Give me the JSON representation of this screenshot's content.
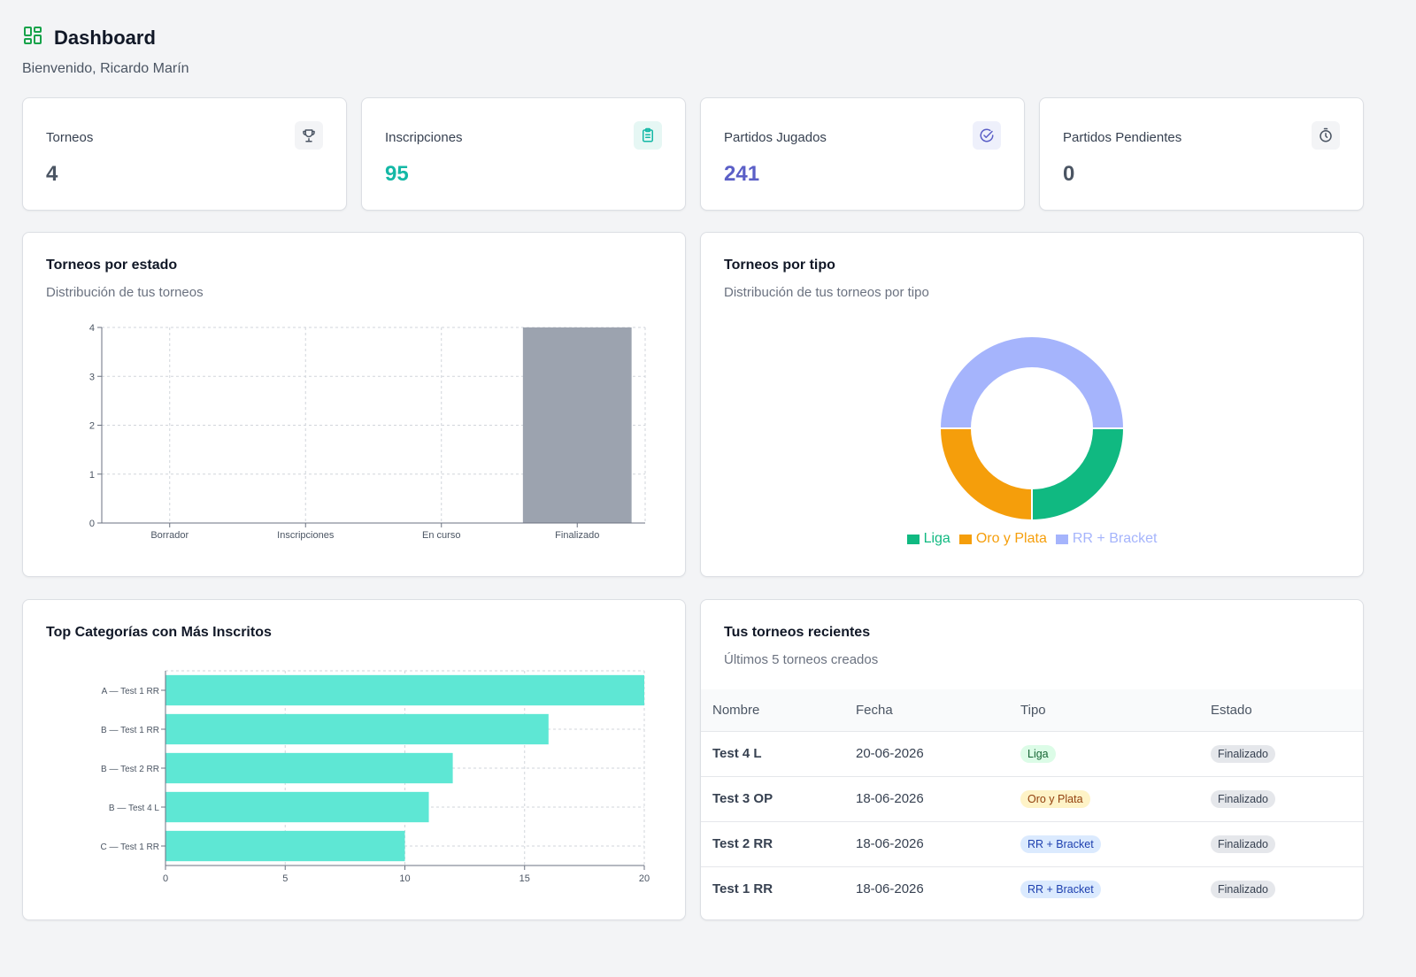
{
  "header": {
    "title": "Dashboard",
    "subtitle": "Bienvenido, Ricardo Marín",
    "icon": "dashboard-grid-icon"
  },
  "stats": [
    {
      "label": "Torneos",
      "value": "4",
      "icon": "trophy-icon",
      "color": "#4b5563",
      "icon_bg": "#f3f4f6"
    },
    {
      "label": "Inscripciones",
      "value": "95",
      "icon": "clipboard-icon",
      "color": "#14b8a6",
      "icon_bg": "#e6f7f4"
    },
    {
      "label": "Partidos Jugados",
      "value": "241",
      "icon": "check-circle-icon",
      "color": "#5b5fc7",
      "icon_bg": "#eef0fb"
    },
    {
      "label": "Partidos Pendientes",
      "value": "0",
      "icon": "timer-icon",
      "color": "#4b5563",
      "icon_bg": "#f3f4f6"
    }
  ],
  "estado_chart": {
    "title": "Torneos por estado",
    "subtitle": "Distribución de tus torneos"
  },
  "tipo_chart": {
    "title": "Torneos por tipo",
    "subtitle": "Distribución de tus torneos por tipo",
    "legend": [
      {
        "label": "Liga",
        "color": "#10b981"
      },
      {
        "label": "Oro y Plata",
        "color": "#f59e0b"
      },
      {
        "label": "RR + Bracket",
        "color": "#a5b4fc"
      }
    ]
  },
  "top_chart": {
    "title": "Top Categorías con Más Inscritos"
  },
  "recent": {
    "title": "Tus torneos recientes",
    "subtitle": "Últimos 5 torneos creados",
    "columns": [
      "Nombre",
      "Fecha",
      "Tipo",
      "Estado"
    ],
    "rows": [
      {
        "nombre": "Test 4 L",
        "fecha": "20-06-2026",
        "tipo": "Liga",
        "estado": "Finalizado"
      },
      {
        "nombre": "Test 3 OP",
        "fecha": "18-06-2026",
        "tipo": "Oro y Plata",
        "estado": "Finalizado"
      },
      {
        "nombre": "Test 2 RR",
        "fecha": "18-06-2026",
        "tipo": "RR + Bracket",
        "estado": "Finalizado"
      },
      {
        "nombre": "Test 1 RR",
        "fecha": "18-06-2026",
        "tipo": "RR + Bracket",
        "estado": "Finalizado"
      }
    ]
  },
  "chart_data": [
    {
      "type": "bar",
      "title": "Torneos por estado",
      "categories": [
        "Borrador",
        "Inscripciones",
        "En curso",
        "Finalizado"
      ],
      "values": [
        0,
        0,
        0,
        4
      ],
      "ylim": [
        0,
        4
      ],
      "yticks": [
        0,
        1,
        2,
        3,
        4
      ],
      "grid": true,
      "color": "#9ca3af"
    },
    {
      "type": "pie",
      "donut": true,
      "title": "Torneos por tipo",
      "labels": [
        "Liga",
        "Oro y Plata",
        "RR + Bracket"
      ],
      "values": [
        1,
        1,
        2
      ],
      "colors": [
        "#10b981",
        "#f59e0b",
        "#a5b4fc"
      ],
      "legend": "bottom"
    },
    {
      "type": "bar",
      "orientation": "horizontal",
      "title": "Top Categorías con Más Inscritos",
      "categories": [
        "A — Test 1 RR",
        "B — Test 1 RR",
        "B — Test 2 RR",
        "B — Test 4 L",
        "C — Test 1 RR"
      ],
      "values": [
        20,
        16,
        12,
        11,
        10
      ],
      "xlim": [
        0,
        20
      ],
      "xticks": [
        0,
        5,
        10,
        15,
        20
      ],
      "grid": true,
      "color": "#5ee7d4"
    }
  ]
}
